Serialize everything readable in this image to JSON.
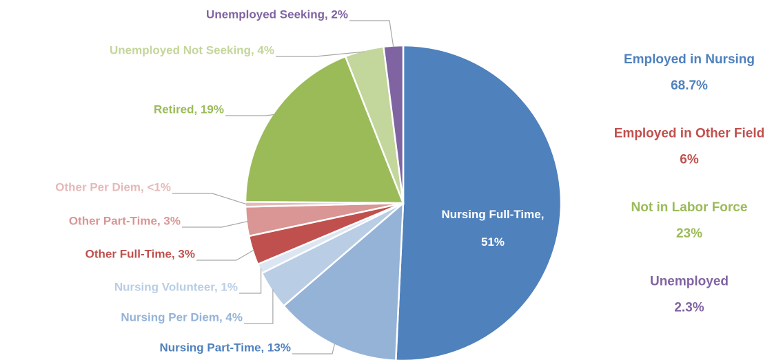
{
  "chart_data": {
    "type": "pie",
    "categories": [
      "Nursing Full-Time",
      "Nursing Part-Time",
      "Nursing Per Diem",
      "Nursing Volunteer",
      "Other Full-Time",
      "Other Part-Time",
      "Other Per Diem",
      "Retired",
      "Unemployed Not Seeking",
      "Unemployed Seeking"
    ],
    "values": [
      51,
      13,
      4,
      1,
      3,
      3,
      0.5,
      19,
      4,
      2
    ],
    "value_labels": [
      "Nursing Full-Time, 51%",
      "Nursing Part-Time, 13%",
      "Nursing Per Diem, 4%",
      "Nursing Volunteer, 1%",
      "Other Full-Time, 3%",
      "Other Part-Time, 3%",
      "Other Per Diem, <1%",
      "Retired, 19%",
      "Unemployed Not Seeking, 4%",
      "Unemployed Seeking, 2%"
    ],
    "colors": [
      "#4f81bd",
      "#95b3d7",
      "#b9cde5",
      "#dce6f2",
      "#c0504d",
      "#d99694",
      "#e6b9b8",
      "#9bbb59",
      "#c3d69b",
      "#8064a2"
    ],
    "groups": [
      {
        "name": "Employed in Nursing",
        "value": 68.7,
        "value_label": "68.7%",
        "color": "#4f81bd"
      },
      {
        "name": "Employed in Other Field",
        "value": 6,
        "value_label": "6%",
        "color": "#c0504d"
      },
      {
        "name": "Not in Labor Force",
        "value": 23,
        "value_label": "23%",
        "color": "#9bbb59"
      },
      {
        "name": "Unemployed",
        "value": 2.3,
        "value_label": "2.3%",
        "color": "#8064a2"
      }
    ]
  }
}
